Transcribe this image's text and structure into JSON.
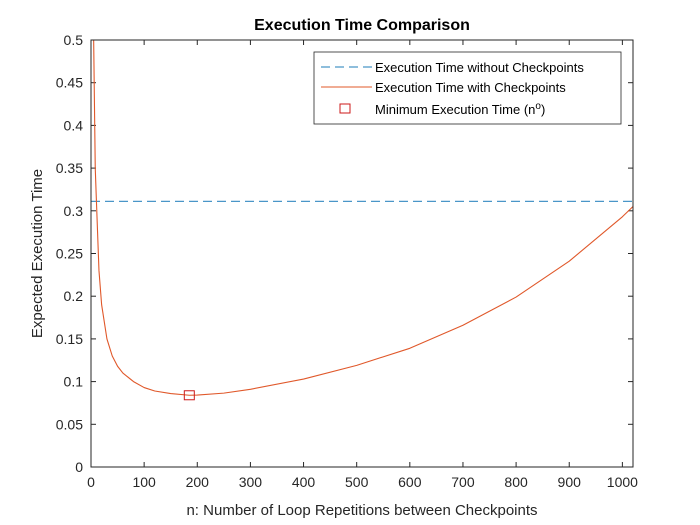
{
  "colors": {
    "baseline": "#4a96c8",
    "checkpoint": "#e0582a",
    "marker": "#cc1a1a",
    "axis": "#262626"
  },
  "chart_data": {
    "type": "line",
    "title": "Execution Time Comparison",
    "xlabel": "n: Number of Loop Repetitions between Checkpoints",
    "ylabel": "Expected Execution Time",
    "xlim": [
      0,
      1020
    ],
    "ylim": [
      0,
      0.5
    ],
    "x_ticks": [
      0,
      100,
      200,
      300,
      400,
      500,
      600,
      700,
      800,
      900,
      1000
    ],
    "x_tick_labels": [
      "0",
      "100",
      "200",
      "300",
      "400",
      "500",
      "600",
      "700",
      "800",
      "900",
      "1000"
    ],
    "y_ticks": [
      0,
      0.05,
      0.1,
      0.15,
      0.2,
      0.25,
      0.3,
      0.35,
      0.4,
      0.45,
      0.5
    ],
    "y_tick_labels": [
      "0",
      "0.05",
      "0.1",
      "0.15",
      "0.2",
      "0.25",
      "0.3",
      "0.35",
      "0.4",
      "0.45",
      "0.5"
    ],
    "grid": false,
    "legend_position": "top-right",
    "series": [
      {
        "name": "Execution Time without Checkpoints",
        "style": "dashed",
        "x": [
          0,
          1020
        ],
        "y": [
          0.311,
          0.311
        ]
      },
      {
        "name": "Execution Time with Checkpoints",
        "style": "solid",
        "x": [
          5,
          8,
          10,
          15,
          20,
          30,
          40,
          50,
          60,
          80,
          100,
          120,
          150,
          185,
          200,
          250,
          300,
          400,
          500,
          600,
          700,
          800,
          900,
          1000,
          1020
        ],
        "y": [
          0.5,
          0.35,
          0.315,
          0.23,
          0.19,
          0.15,
          0.13,
          0.118,
          0.11,
          0.1,
          0.093,
          0.089,
          0.086,
          0.084,
          0.0842,
          0.0865,
          0.091,
          0.103,
          0.119,
          0.139,
          0.166,
          0.199,
          0.241,
          0.293,
          0.305
        ]
      },
      {
        "name": "Minimum Execution Time (n",
        "name_superscript": "o",
        "name_suffix": ")",
        "style": "marker",
        "x": [
          185
        ],
        "y": [
          0.084
        ]
      }
    ]
  }
}
